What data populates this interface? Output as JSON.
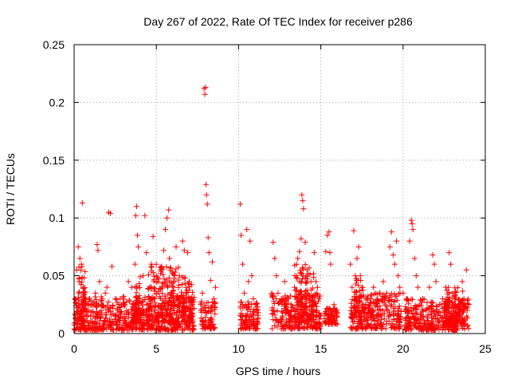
{
  "chart_data": {
    "type": "scatter",
    "title": "Day 267 of 2022, Rate Of TEC Index for receiver p286",
    "xlabel": "GPS time / hours",
    "ylabel": "ROTI / TECUs",
    "xlim": [
      0,
      25
    ],
    "ylim": [
      0,
      0.25
    ],
    "x_ticks": [
      0,
      5,
      10,
      15,
      20,
      25
    ],
    "x_tick_labels": [
      "0",
      "5",
      "10",
      "15",
      "20",
      "25"
    ],
    "y_ticks": [
      0,
      0.05,
      0.1,
      0.15,
      0.2,
      0.25
    ],
    "y_tick_labels": [
      "0",
      "0.05",
      "0.1",
      "0.15",
      "0.2",
      "0.25"
    ],
    "grid": true,
    "marker": "+",
    "color": "#ff0000",
    "series": [
      {
        "name": "ROTI",
        "points": [
          [
            0.05,
            0.03
          ],
          [
            0.15,
            0.055
          ],
          [
            0.25,
            0.075
          ],
          [
            0.3,
            0.045
          ],
          [
            0.35,
            0.065
          ],
          [
            0.45,
            0.06
          ],
          [
            0.5,
            0.113
          ],
          [
            0.55,
            0.04
          ],
          [
            0.65,
            0.03
          ],
          [
            0.8,
            0.02
          ],
          [
            1.0,
            0.015
          ],
          [
            1.2,
            0.025
          ],
          [
            1.3,
            0.035
          ],
          [
            1.4,
            0.077
          ],
          [
            1.45,
            0.072
          ],
          [
            1.55,
            0.045
          ],
          [
            1.7,
            0.03
          ],
          [
            1.9,
            0.035
          ],
          [
            2.0,
            0.04
          ],
          [
            2.1,
            0.105
          ],
          [
            2.2,
            0.104
          ],
          [
            2.3,
            0.058
          ],
          [
            2.5,
            0.03
          ],
          [
            2.8,
            0.03
          ],
          [
            3.1,
            0.025
          ],
          [
            3.3,
            0.045
          ],
          [
            3.5,
            0.04
          ],
          [
            3.7,
            0.06
          ],
          [
            3.75,
            0.102
          ],
          [
            3.8,
            0.11
          ],
          [
            3.85,
            0.085
          ],
          [
            3.9,
            0.075
          ],
          [
            4.0,
            0.03
          ],
          [
            4.2,
            0.05
          ],
          [
            4.3,
            0.102
          ],
          [
            4.4,
            0.07
          ],
          [
            4.6,
            0.04
          ],
          [
            4.7,
            0.06
          ],
          [
            4.8,
            0.084
          ],
          [
            4.9,
            0.03
          ],
          [
            5.0,
            0.05
          ],
          [
            5.1,
            0.045
          ],
          [
            5.3,
            0.055
          ],
          [
            5.45,
            0.072
          ],
          [
            5.55,
            0.09
          ],
          [
            5.65,
            0.1
          ],
          [
            5.75,
            0.107
          ],
          [
            5.8,
            0.065
          ],
          [
            5.9,
            0.045
          ],
          [
            6.0,
            0.035
          ],
          [
            6.2,
            0.075
          ],
          [
            6.4,
            0.05
          ],
          [
            6.6,
            0.08
          ],
          [
            6.7,
            0.072
          ],
          [
            6.9,
            0.07
          ],
          [
            7.0,
            0.045
          ],
          [
            7.1,
            0.03
          ],
          [
            7.2,
            0.025
          ],
          [
            7.7,
            0.02
          ],
          [
            7.8,
            0.035
          ],
          [
            7.9,
            0.212
          ],
          [
            7.95,
            0.207
          ],
          [
            8.0,
            0.213
          ],
          [
            8.02,
            0.129
          ],
          [
            8.05,
            0.12
          ],
          [
            8.1,
            0.112
          ],
          [
            8.15,
            0.083
          ],
          [
            8.2,
            0.07
          ],
          [
            8.3,
            0.046
          ],
          [
            8.4,
            0.062
          ],
          [
            8.5,
            0.03
          ],
          [
            8.6,
            0.04
          ],
          [
            10.1,
            0.112
          ],
          [
            10.15,
            0.085
          ],
          [
            10.25,
            0.06
          ],
          [
            10.35,
            0.035
          ],
          [
            10.5,
            0.09
          ],
          [
            10.6,
            0.045
          ],
          [
            10.7,
            0.08
          ],
          [
            10.8,
            0.05
          ],
          [
            10.9,
            0.03
          ],
          [
            11.0,
            0.025
          ],
          [
            11.1,
            0.02
          ],
          [
            11.2,
            0.018
          ],
          [
            12.1,
            0.079
          ],
          [
            12.2,
            0.065
          ],
          [
            12.3,
            0.05
          ],
          [
            12.4,
            0.035
          ],
          [
            12.6,
            0.03
          ],
          [
            12.8,
            0.045
          ],
          [
            13.0,
            0.03
          ],
          [
            13.2,
            0.025
          ],
          [
            13.4,
            0.04
          ],
          [
            13.55,
            0.05
          ],
          [
            13.6,
            0.065
          ],
          [
            13.7,
            0.071
          ],
          [
            13.8,
            0.082
          ],
          [
            13.85,
            0.12
          ],
          [
            13.9,
            0.115
          ],
          [
            13.95,
            0.108
          ],
          [
            14.05,
            0.079
          ],
          [
            14.1,
            0.05
          ],
          [
            14.2,
            0.035
          ],
          [
            14.4,
            0.045
          ],
          [
            14.6,
            0.07
          ],
          [
            14.7,
            0.045
          ],
          [
            14.8,
            0.04
          ],
          [
            14.9,
            0.03
          ],
          [
            15.3,
            0.071
          ],
          [
            15.4,
            0.085
          ],
          [
            15.5,
            0.088
          ],
          [
            15.55,
            0.07
          ],
          [
            15.6,
            0.06
          ],
          [
            15.8,
            0.025
          ],
          [
            15.9,
            0.02
          ],
          [
            16.0,
            0.018
          ],
          [
            16.8,
            0.06
          ],
          [
            16.9,
            0.04
          ],
          [
            17.0,
            0.089
          ],
          [
            17.1,
            0.05
          ],
          [
            17.2,
            0.065
          ],
          [
            17.3,
            0.075
          ],
          [
            17.4,
            0.05
          ],
          [
            17.5,
            0.04
          ],
          [
            17.8,
            0.03
          ],
          [
            18.2,
            0.04
          ],
          [
            18.6,
            0.035
          ],
          [
            18.8,
            0.045
          ],
          [
            19.0,
            0.035
          ],
          [
            19.2,
            0.075
          ],
          [
            19.3,
            0.088
          ],
          [
            19.4,
            0.068
          ],
          [
            19.5,
            0.06
          ],
          [
            19.6,
            0.08
          ],
          [
            19.7,
            0.05
          ],
          [
            19.8,
            0.04
          ],
          [
            20.0,
            0.035
          ],
          [
            20.2,
            0.03
          ],
          [
            20.4,
            0.08
          ],
          [
            20.5,
            0.098
          ],
          [
            20.55,
            0.095
          ],
          [
            20.6,
            0.09
          ],
          [
            20.7,
            0.065
          ],
          [
            20.8,
            0.05
          ],
          [
            20.9,
            0.04
          ],
          [
            21.2,
            0.03
          ],
          [
            21.4,
            0.02
          ],
          [
            21.6,
            0.04
          ],
          [
            21.8,
            0.068
          ],
          [
            21.9,
            0.06
          ],
          [
            22.0,
            0.045
          ],
          [
            22.2,
            0.025
          ],
          [
            22.4,
            0.03
          ],
          [
            22.6,
            0.04
          ],
          [
            22.8,
            0.07
          ],
          [
            22.9,
            0.06
          ],
          [
            23.0,
            0.035
          ],
          [
            23.2,
            0.03
          ],
          [
            23.4,
            0.025
          ],
          [
            23.6,
            0.045
          ],
          [
            23.7,
            0.03
          ],
          [
            23.85,
            0.055
          ],
          [
            23.9,
            0.02
          ]
        ],
        "dense_bands": [
          {
            "x": [
              0.0,
              7.3
            ],
            "y": [
              0.003,
              0.032
            ]
          },
          {
            "x": [
              0.2,
              0.7
            ],
            "y": [
              0.01,
              0.06
            ]
          },
          {
            "x": [
              3.6,
              4.1
            ],
            "y": [
              0.01,
              0.05
            ]
          },
          {
            "x": [
              4.5,
              6.4
            ],
            "y": [
              0.01,
              0.06
            ]
          },
          {
            "x": [
              6.5,
              7.2
            ],
            "y": [
              0.01,
              0.05
            ]
          },
          {
            "x": [
              7.7,
              8.6
            ],
            "y": [
              0.004,
              0.028
            ]
          },
          {
            "x": [
              10.1,
              11.2
            ],
            "y": [
              0.004,
              0.028
            ]
          },
          {
            "x": [
              12.0,
              15.0
            ],
            "y": [
              0.004,
              0.035
            ]
          },
          {
            "x": [
              13.4,
              14.6
            ],
            "y": [
              0.01,
              0.06
            ]
          },
          {
            "x": [
              15.2,
              16.0
            ],
            "y": [
              0.008,
              0.022
            ]
          },
          {
            "x": [
              16.8,
              19.9
            ],
            "y": [
              0.004,
              0.035
            ]
          },
          {
            "x": [
              17.0,
              17.6
            ],
            "y": [
              0.01,
              0.05
            ]
          },
          {
            "x": [
              20.1,
              24.0
            ],
            "y": [
              0.003,
              0.03
            ]
          },
          {
            "x": [
              22.5,
              23.7
            ],
            "y": [
              0.008,
              0.04
            ]
          }
        ]
      }
    ]
  }
}
